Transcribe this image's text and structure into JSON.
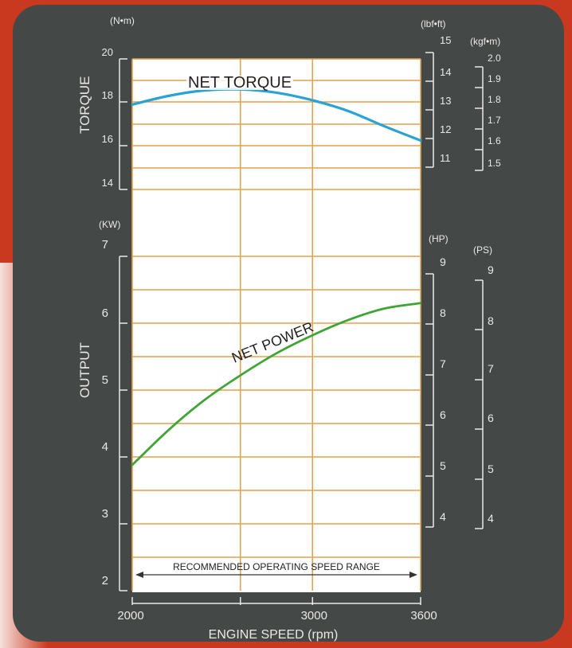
{
  "chart_data": [
    {
      "type": "line",
      "name": "torque",
      "series": [
        {
          "name": "NET TORQUE",
          "color": "#29a3d6",
          "x": [
            2000,
            2200,
            2400,
            2600,
            2800,
            3000,
            3200,
            3400,
            3600
          ],
          "y": [
            17.9,
            18.3,
            18.55,
            18.6,
            18.45,
            18.1,
            17.6,
            16.9,
            16.25
          ]
        }
      ],
      "axes": {
        "torque_nm": {
          "unit": "(N•m)",
          "title": "TORQUE",
          "ticks": [
            "20",
            "18",
            "16",
            "14"
          ],
          "ylim": [
            14,
            20
          ]
        },
        "torque_lbfft": {
          "unit": "(lbf•ft)",
          "ticks": [
            "15",
            "14",
            "13",
            "12",
            "11"
          ]
        },
        "torque_kgfm": {
          "unit": "(kgf•m)",
          "ticks": [
            "2.0",
            "1.9",
            "1.8",
            "1.7",
            "1.6",
            "1.5"
          ]
        }
      },
      "grid": true
    },
    {
      "type": "line",
      "name": "output",
      "series": [
        {
          "name": "NET POWER",
          "color": "#3fa535",
          "x": [
            2000,
            2200,
            2400,
            2600,
            2800,
            3000,
            3200,
            3400,
            3600
          ],
          "y": [
            3.88,
            4.4,
            4.85,
            5.22,
            5.55,
            5.82,
            6.05,
            6.22,
            6.3
          ]
        }
      ],
      "axes": {
        "output_kw": {
          "unit": "(KW)",
          "title": "OUTPUT",
          "ticks": [
            "7",
            "6",
            "5",
            "4",
            "3",
            "2"
          ],
          "ylim": [
            2,
            7
          ]
        },
        "output_hp": {
          "unit": "(HP)",
          "ticks": [
            "9",
            "8",
            "7",
            "6",
            "5",
            "4"
          ]
        },
        "output_ps": {
          "unit": "(PS)",
          "ticks": [
            "9",
            "8",
            "7",
            "6",
            "5",
            "4"
          ]
        }
      },
      "grid": true
    }
  ],
  "x_axis": {
    "label": "ENGINE SPEED (rpm)",
    "ticks": [
      "2000",
      "3000",
      "3600"
    ],
    "xlim": [
      2000,
      3600
    ]
  },
  "annotation": {
    "text": "RECOMMENDED OPERATING SPEED RANGE",
    "from": 2000,
    "to": 3600
  },
  "colors": {
    "panel": "#444846",
    "border": "#c9391f",
    "plot_bg": "#ffffff",
    "grid": "#e3a24e",
    "axis_text": "#e9e9e6"
  }
}
